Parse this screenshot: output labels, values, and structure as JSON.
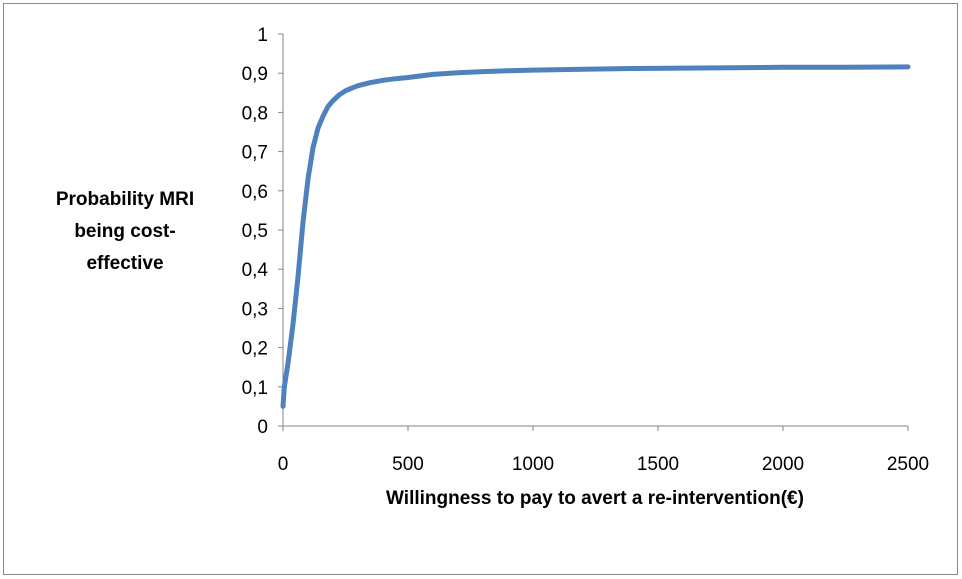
{
  "chart_data": {
    "type": "line",
    "title": "",
    "xlabel": "Willingness to pay to avert a re-intervention(€)",
    "ylabel_lines": [
      "Probability MRI",
      "being cost-",
      "effective"
    ],
    "xlim": [
      0,
      2500
    ],
    "ylim": [
      0,
      1
    ],
    "x_ticks": [
      0,
      500,
      1000,
      1500,
      2000,
      2500
    ],
    "x_tick_labels": [
      "0",
      "500",
      "1000",
      "1500",
      "2000",
      "2500"
    ],
    "y_ticks": [
      0,
      0.1,
      0.2,
      0.3,
      0.4,
      0.5,
      0.6,
      0.7,
      0.8,
      0.9,
      1
    ],
    "y_tick_labels": [
      "0",
      "0,1",
      "0,2",
      "0,3",
      "0,4",
      "0,5",
      "0,6",
      "0,7",
      "0,8",
      "0,9",
      "1"
    ],
    "grid": false,
    "legend": "none",
    "series": [
      {
        "color": "#4f81bd",
        "x": [
          0,
          5,
          20,
          40,
          60,
          80,
          100,
          120,
          140,
          160,
          180,
          200,
          225,
          250,
          275,
          300,
          350,
          400,
          450,
          500,
          600,
          700,
          800,
          900,
          1000,
          1200,
          1400,
          1600,
          1800,
          2000,
          2250,
          2500
        ],
        "y": [
          0.05,
          0.1,
          0.16,
          0.26,
          0.38,
          0.52,
          0.63,
          0.71,
          0.76,
          0.79,
          0.815,
          0.83,
          0.845,
          0.855,
          0.862,
          0.868,
          0.876,
          0.882,
          0.886,
          0.889,
          0.897,
          0.901,
          0.904,
          0.906,
          0.908,
          0.91,
          0.912,
          0.913,
          0.914,
          0.915,
          0.915,
          0.916
        ]
      }
    ]
  }
}
